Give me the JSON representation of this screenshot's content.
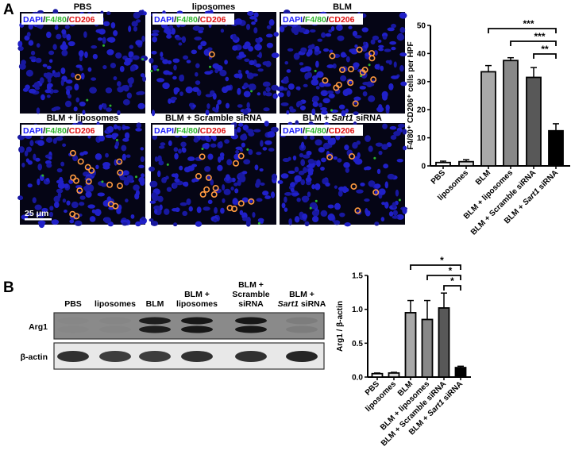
{
  "panel_a": {
    "letter": "A",
    "stain_label": {
      "dapi": "DAPI",
      "sep": "/",
      "f480": "F4/80",
      "cd206": "CD206"
    },
    "stain_colors": {
      "dapi": "#1a1aff",
      "f480": "#2db52d",
      "cd206": "#e01010"
    },
    "images": [
      {
        "title": "PBS",
        "title_italic": "",
        "title_suffix": "",
        "positive_cells": 1
      },
      {
        "title": "liposomes",
        "title_italic": "",
        "title_suffix": "",
        "positive_cells": 1
      },
      {
        "title": "BLM",
        "title_italic": "",
        "title_suffix": "",
        "positive_cells": 14
      },
      {
        "title": "BLM + liposomes",
        "title_italic": "",
        "title_suffix": "",
        "positive_cells": 16
      },
      {
        "title": "BLM + Scramble siRNA",
        "title_italic": "",
        "title_suffix": "",
        "positive_cells": 13
      },
      {
        "title": "BLM + ",
        "title_italic": "Sart1",
        "title_suffix": " siRNA",
        "positive_cells": 5
      }
    ],
    "scale_bar": "25 μm"
  },
  "panel_b": {
    "letter": "B",
    "blot_lanes": [
      {
        "line1": "",
        "line2": "",
        "line3": "PBS",
        "italic": ""
      },
      {
        "line1": "",
        "line2": "",
        "line3": "liposomes",
        "italic": ""
      },
      {
        "line1": "",
        "line2": "",
        "line3": "BLM",
        "italic": ""
      },
      {
        "line1": "",
        "line2": "BLM +",
        "line3": "liposomes",
        "italic": ""
      },
      {
        "line1": "BLM +",
        "line2": "Scramble",
        "line3": "siRNA",
        "italic": ""
      },
      {
        "line1": "",
        "line2": "BLM +",
        "line3": " siRNA",
        "italic": "Sart1"
      }
    ],
    "blot_rows": [
      {
        "label": "Arg1",
        "band_intensity": [
          0.02,
          0.03,
          0.9,
          0.95,
          0.95,
          0.1
        ]
      },
      {
        "label": "β-actin",
        "band_intensity": [
          0.85,
          0.8,
          0.8,
          0.85,
          0.85,
          0.9
        ]
      }
    ]
  },
  "chart_data": [
    {
      "type": "bar",
      "categories": [
        "PBS",
        "liposomes",
        "BLM",
        "BLM + liposomes",
        "BLM + Scramble siRNA",
        "BLM + Sart1 siRNA"
      ],
      "italic_part": [
        "",
        "",
        "",
        "",
        "",
        "Sart1"
      ],
      "values": [
        1.2,
        1.5,
        33.5,
        37.5,
        31.5,
        12.5
      ],
      "errors": [
        0.5,
        0.7,
        2.2,
        1.0,
        3.5,
        2.5
      ],
      "colors": [
        "#ffffff",
        "#d8d8d8",
        "#a8a8a8",
        "#888888",
        "#585858",
        "#000000"
      ],
      "ylabel": "F4/80⁺ CD206⁺ cells per HPF",
      "ylim": [
        0,
        50
      ],
      "yticks": [
        "0",
        "10",
        "20",
        "30",
        "40",
        "50"
      ],
      "significance": [
        {
          "from": 2,
          "to": 5,
          "label": "***"
        },
        {
          "from": 3,
          "to": 5,
          "label": "***"
        },
        {
          "from": 4,
          "to": 5,
          "label": "**"
        }
      ]
    },
    {
      "type": "bar",
      "categories": [
        "PBS",
        "liposomes",
        "BLM",
        "BLM + liposomes",
        "BLM + Scramble siRNA",
        "BLM + Sart1 siRNA"
      ],
      "italic_part": [
        "",
        "",
        "",
        "",
        "",
        "Sart1"
      ],
      "values": [
        0.05,
        0.06,
        0.95,
        0.85,
        1.02,
        0.14
      ],
      "errors": [
        0.01,
        0.01,
        0.18,
        0.28,
        0.22,
        0.02
      ],
      "colors": [
        "#ffffff",
        "#d8d8d8",
        "#a8a8a8",
        "#888888",
        "#585858",
        "#000000"
      ],
      "ylabel": "Arg1 / β-actin",
      "ylim": [
        0,
        1.5
      ],
      "yticks": [
        "0.0",
        "0.5",
        "1.0",
        "1.5"
      ],
      "significance": [
        {
          "from": 2,
          "to": 5,
          "label": "*"
        },
        {
          "from": 3,
          "to": 5,
          "label": "*"
        },
        {
          "from": 4,
          "to": 5,
          "label": "*"
        }
      ]
    }
  ]
}
